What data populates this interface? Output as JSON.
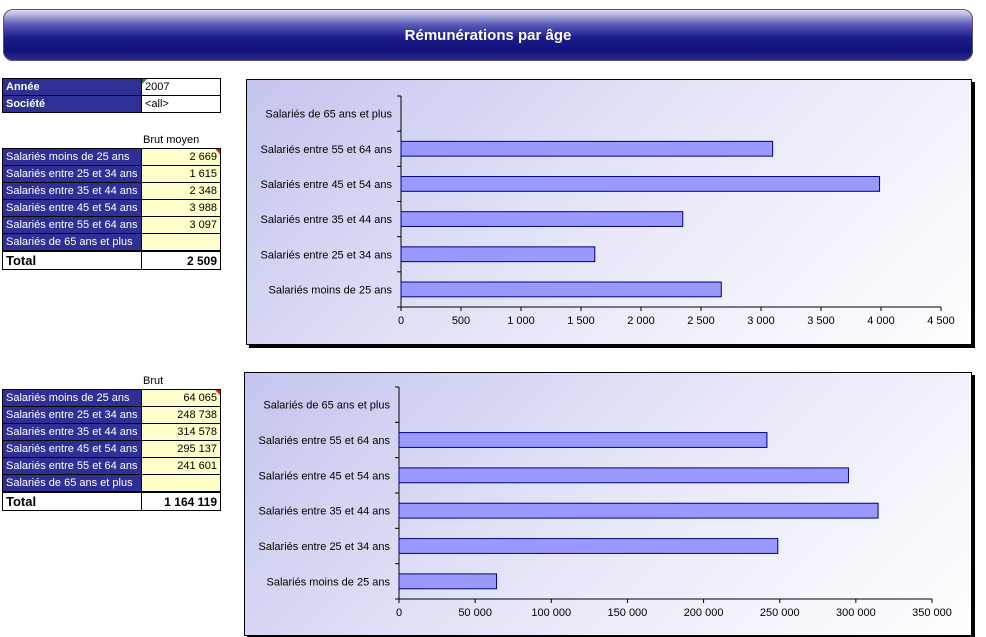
{
  "header": {
    "title": "Rémunérations par âge"
  },
  "filters": [
    {
      "label": "Année",
      "value": "2007"
    },
    {
      "label": "Société",
      "value": "<all>"
    }
  ],
  "table1": {
    "column_header": "Brut moyen",
    "rows": [
      {
        "label": "Salariés moins de 25 ans",
        "value": "2 669"
      },
      {
        "label": "Salariés entre 25 et 34 ans",
        "value": "1 615"
      },
      {
        "label": "Salariés entre 35 et 44 ans",
        "value": "2 348"
      },
      {
        "label": "Salariés entre 45 et 54 ans",
        "value": "3 988"
      },
      {
        "label": "Salariés entre 55 et 64 ans",
        "value": "3 097"
      },
      {
        "label": "Salariés de 65 ans et plus",
        "value": ""
      }
    ],
    "total_label": "Total",
    "total_value": "2 509"
  },
  "table2": {
    "column_header": "Brut",
    "rows": [
      {
        "label": "Salariés moins de 25 ans",
        "value": "64 065"
      },
      {
        "label": "Salariés entre 25 et 34 ans",
        "value": "248 738"
      },
      {
        "label": "Salariés entre 35 et 44 ans",
        "value": "314 578"
      },
      {
        "label": "Salariés entre 45 et 54 ans",
        "value": "295 137"
      },
      {
        "label": "Salariés entre 55 et 64 ans",
        "value": "241 601"
      },
      {
        "label": "Salariés de 65 ans et plus",
        "value": ""
      }
    ],
    "total_label": "Total",
    "total_value": "1 164 119"
  },
  "colors": {
    "bar_fill": "#9999ff",
    "bar_stroke": "#000080",
    "header_cell": "#2f2f96",
    "value_cell": "#ffffcc"
  },
  "chart_data": [
    {
      "type": "bar",
      "orientation": "horizontal",
      "categories": [
        "Salariés de 65 ans et plus",
        "Salariés entre 55 et 64 ans",
        "Salariés entre 45 et 54 ans",
        "Salariés entre 35 et 44 ans",
        "Salariés entre 25 et 34 ans",
        "Salariés moins de 25 ans"
      ],
      "values": [
        0,
        3097,
        3988,
        2348,
        1615,
        2669
      ],
      "xlim": [
        0,
        4500
      ],
      "ticks": [
        0,
        500,
        1000,
        1500,
        2000,
        2500,
        3000,
        3500,
        4000,
        4500
      ],
      "tick_labels": [
        "0",
        "500",
        "1 000",
        "1 500",
        "2 000",
        "2 500",
        "3 000",
        "3 500",
        "4 000",
        "4 500"
      ],
      "grid": false,
      "legend": "none"
    },
    {
      "type": "bar",
      "orientation": "horizontal",
      "categories": [
        "Salariés de 65 ans et plus",
        "Salariés entre 55 et 64 ans",
        "Salariés entre 45 et 54 ans",
        "Salariés entre 35 et 44 ans",
        "Salariés entre 25 et 34 ans",
        "Salariés moins de 25 ans"
      ],
      "values": [
        0,
        241601,
        295137,
        314578,
        248738,
        64065
      ],
      "xlim": [
        0,
        350000
      ],
      "ticks": [
        0,
        50000,
        100000,
        150000,
        200000,
        250000,
        300000,
        350000
      ],
      "tick_labels": [
        "0",
        "50 000",
        "100 000",
        "150 000",
        "200 000",
        "250 000",
        "300 000",
        "350 000"
      ],
      "grid": false,
      "legend": "none"
    }
  ]
}
